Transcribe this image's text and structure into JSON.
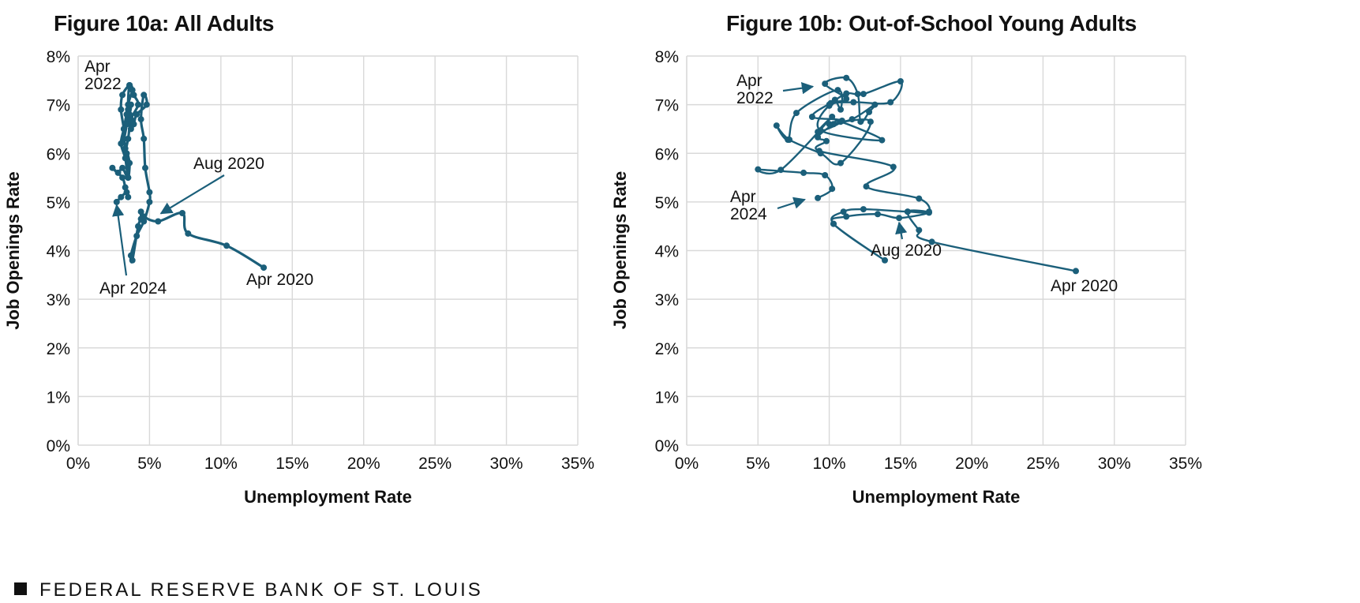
{
  "footer": {
    "text": "FEDERAL RESERVE BANK OF ST. LOUIS",
    "icon": "square-bullet-icon"
  },
  "colors": {
    "series": "#1b5f7a",
    "grid": "#d9d9d9",
    "text": "#111111"
  },
  "chart_data": [
    {
      "type": "scatter",
      "mode": "connected-path",
      "title": "Figure 10a: All Adults",
      "xlabel": "Unemployment Rate",
      "ylabel": "Job Openings Rate",
      "xlim": [
        0,
        35
      ],
      "ylim": [
        0,
        8
      ],
      "xticks": [
        "0%",
        "5%",
        "10%",
        "15%",
        "20%",
        "25%",
        "30%",
        "35%"
      ],
      "yticks": [
        "0%",
        "1%",
        "2%",
        "3%",
        "4%",
        "5%",
        "6%",
        "7%",
        "8%"
      ],
      "grid": true,
      "series": [
        {
          "x": [
            13.0,
            10.4,
            7.7,
            7.3,
            5.6,
            4.6,
            4.4,
            4.4,
            4.2,
            3.8,
            3.7,
            4.1,
            4.6,
            5.0,
            5.0,
            4.7,
            4.6,
            4.4,
            4.6,
            4.8,
            4.1,
            3.9,
            3.7,
            3.5,
            3.6,
            3.9,
            4.2,
            3.7,
            3.5,
            3.3,
            3.2,
            3.0,
            3.1,
            3.6,
            3.8,
            3.5,
            3.4,
            3.2,
            3.3,
            3.6,
            3.7,
            3.4,
            3.2,
            3.0,
            3.3,
            3.5,
            3.6,
            3.4,
            3.5,
            3.1,
            2.8,
            2.4,
            3.1,
            3.3,
            3.5,
            3.4,
            3.0,
            2.7
          ],
          "y": [
            3.65,
            4.1,
            4.35,
            4.77,
            4.6,
            4.7,
            4.8,
            4.65,
            4.5,
            3.8,
            3.9,
            4.3,
            4.6,
            5.0,
            5.2,
            5.7,
            6.3,
            6.7,
            7.2,
            7.0,
            6.8,
            6.6,
            6.5,
            6.9,
            7.4,
            7.2,
            7.0,
            6.7,
            6.3,
            6.1,
            6.5,
            6.9,
            7.2,
            7.4,
            7.3,
            7.0,
            6.6,
            6.3,
            6.6,
            6.8,
            7.0,
            6.8,
            6.5,
            6.2,
            5.9,
            5.5,
            5.8,
            6.0,
            5.5,
            5.7,
            5.6,
            5.7,
            5.5,
            5.3,
            5.1,
            5.2,
            5.1,
            5.0
          ]
        }
      ],
      "annotations": [
        {
          "text": "Apr 2022",
          "lines": [
            "Apr",
            "2022"
          ],
          "x": 3.3,
          "y": 7.4
        },
        {
          "text": "Aug 2020",
          "x": 5.8,
          "y": 4.7
        },
        {
          "text": "Apr 2020",
          "x": 13.0,
          "y": 3.65
        },
        {
          "text": "Apr 2024",
          "x": 2.7,
          "y": 5.0
        }
      ]
    },
    {
      "type": "scatter",
      "mode": "connected-path",
      "title": "Figure 10b: Out-of-School Young Adults",
      "xlabel": "Unemployment Rate",
      "ylabel": "Job Openings Rate",
      "xlim": [
        0,
        35
      ],
      "ylim": [
        0,
        8
      ],
      "xticks": [
        "0%",
        "5%",
        "10%",
        "15%",
        "20%",
        "25%",
        "30%",
        "35%"
      ],
      "yticks": [
        "0%",
        "1%",
        "2%",
        "3%",
        "4%",
        "5%",
        "6%",
        "7%",
        "8%"
      ],
      "grid": true,
      "series": [
        {
          "x": [
            27.3,
            17.2,
            16.3,
            15.5,
            17.0,
            14.9,
            13.4,
            11.2,
            10.3,
            13.9,
            10.3,
            11.0,
            12.4,
            15.5,
            17.0,
            16.3,
            12.6,
            14.5,
            9.3,
            9.8,
            9.2,
            10.3,
            10.8,
            13.7,
            9.4,
            10.0,
            11.7,
            14.3,
            15.0,
            12.4,
            11.2,
            10.0,
            10.4,
            10.8,
            10.6,
            7.7,
            7.1,
            6.3,
            7.2,
            9.4,
            10.8,
            12.9,
            10.0,
            11.6,
            13.2,
            12.8,
            12.2,
            12.0,
            11.2,
            9.7,
            11.2,
            10.1,
            8.8,
            10.9,
            9.2,
            10.2,
            6.6,
            5.0,
            8.2,
            9.7,
            10.2,
            9.2
          ],
          "y": [
            3.58,
            4.18,
            4.42,
            4.8,
            4.78,
            4.67,
            4.75,
            4.7,
            4.55,
            3.8,
            4.55,
            4.8,
            4.85,
            4.8,
            4.8,
            5.07,
            5.32,
            5.72,
            6.05,
            6.25,
            6.33,
            6.6,
            6.65,
            6.27,
            6.47,
            6.98,
            7.05,
            7.05,
            7.48,
            7.22,
            7.23,
            7.0,
            7.1,
            6.9,
            7.3,
            6.83,
            6.28,
            6.57,
            6.28,
            6.0,
            5.8,
            6.65,
            6.6,
            6.7,
            7.0,
            6.85,
            6.65,
            7.22,
            7.55,
            7.43,
            7.12,
            7.03,
            6.75,
            6.67,
            6.44,
            6.75,
            5.66,
            5.67,
            5.6,
            5.55,
            5.27,
            5.08
          ]
        }
      ],
      "annotations": [
        {
          "text": "Apr 2022",
          "lines": [
            "Apr",
            "2022"
          ],
          "x": 8.9,
          "y": 7.42
        },
        {
          "text": "Aug 2020",
          "x": 14.9,
          "y": 4.67
        },
        {
          "text": "Apr 2020",
          "x": 27.3,
          "y": 3.58
        },
        {
          "text": "Apr 2024",
          "lines": [
            "Apr",
            "2024"
          ],
          "x": 8.5,
          "y": 5.05
        }
      ]
    }
  ]
}
